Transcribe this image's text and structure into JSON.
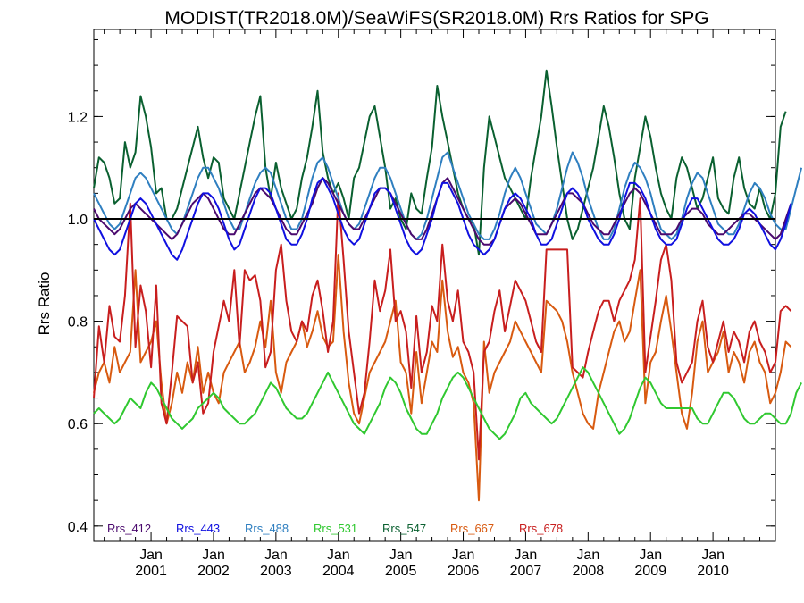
{
  "chart_data": {
    "type": "line",
    "title": "MODIST(TR2018.0M)/SeaWiFS(SR2018.0M)  Rrs Ratios for SPG",
    "xlabel": "",
    "ylabel": "Rrs Ratio",
    "xlim": [
      "2000-02",
      "2011-01"
    ],
    "ylim": [
      0.37,
      1.37
    ],
    "yticks": [
      0.4,
      0.6,
      0.8,
      1.0,
      1.2
    ],
    "ytick_labels": [
      "0.4",
      "0.6",
      "0.8",
      "1.0",
      "1.2"
    ],
    "xticks": [
      "2001-01",
      "2002-01",
      "2003-01",
      "2004-01",
      "2005-01",
      "2006-01",
      "2007-01",
      "2008-01",
      "2009-01",
      "2010-01"
    ],
    "xtick_labels_top": [
      "Jan",
      "Jan",
      "Jan",
      "Jan",
      "Jan",
      "Jan",
      "Jan",
      "Jan",
      "Jan",
      "Jan"
    ],
    "xtick_labels_bottom": [
      "2001",
      "2002",
      "2003",
      "2004",
      "2005",
      "2006",
      "2007",
      "2008",
      "2009",
      "2010"
    ],
    "reference_line": 1.0,
    "grid": false,
    "legend_position": "bottom",
    "start_month": "2000-02",
    "series": [
      {
        "name": "Rrs_412",
        "color": "#4b0a6e",
        "values": [
          1.02,
          1.0,
          0.99,
          0.98,
          0.97,
          0.98,
          1.0,
          1.02,
          1.03,
          1.02,
          1.01,
          1.0,
          0.99,
          0.98,
          0.97,
          0.96,
          0.97,
          0.99,
          1.01,
          1.03,
          1.04,
          1.05,
          1.04,
          1.02,
          1.0,
          0.98,
          0.97,
          0.97,
          0.99,
          1.01,
          1.03,
          1.05,
          1.06,
          1.05,
          1.04,
          1.02,
          1.0,
          0.98,
          0.97,
          0.97,
          0.99,
          1.01,
          1.03,
          1.06,
          1.08,
          1.07,
          1.05,
          1.03,
          1.01,
          0.99,
          0.98,
          0.98,
          1.0,
          1.02,
          1.04,
          1.06,
          1.06,
          1.05,
          1.03,
          1.01,
          0.99,
          0.97,
          0.96,
          0.96,
          0.98,
          1.01,
          1.04,
          1.07,
          1.08,
          1.06,
          1.04,
          1.02,
          1.0,
          0.98,
          0.96,
          0.95,
          0.95,
          0.96,
          0.99,
          1.02,
          1.03,
          1.04,
          1.03,
          1.01,
          0.99,
          0.97,
          0.97,
          0.97,
          0.99,
          1.01,
          1.03,
          1.05,
          1.05,
          1.04,
          1.03,
          1.01,
          0.99,
          0.98,
          0.97,
          0.97,
          0.99,
          1.01,
          1.03,
          1.05,
          1.06,
          1.05,
          1.03,
          1.01,
          0.99,
          0.97,
          0.97,
          0.97,
          0.98,
          1.0,
          1.01,
          1.02,
          1.02,
          1.01,
          0.99,
          0.98,
          0.97,
          0.97,
          0.98,
          0.99,
          1.0,
          1.01,
          1.01,
          1.0,
          0.99,
          0.98,
          0.97,
          0.96,
          0.97,
          1.0,
          1.03
        ]
      },
      {
        "name": "Rrs_443",
        "color": "#1010e0",
        "values": [
          1.0,
          0.98,
          0.96,
          0.94,
          0.93,
          0.94,
          0.97,
          1.0,
          1.03,
          1.04,
          1.03,
          1.01,
          0.99,
          0.97,
          0.95,
          0.93,
          0.92,
          0.94,
          0.97,
          1.0,
          1.03,
          1.05,
          1.05,
          1.04,
          1.02,
          0.99,
          0.96,
          0.94,
          0.95,
          0.98,
          1.01,
          1.04,
          1.06,
          1.06,
          1.05,
          1.02,
          0.99,
          0.96,
          0.95,
          0.95,
          0.97,
          1.0,
          1.04,
          1.07,
          1.08,
          1.06,
          1.04,
          1.01,
          0.98,
          0.96,
          0.95,
          0.96,
          0.99,
          1.02,
          1.05,
          1.06,
          1.06,
          1.05,
          1.02,
          0.99,
          0.96,
          0.94,
          0.93,
          0.94,
          0.97,
          1.0,
          1.04,
          1.07,
          1.07,
          1.05,
          1.03,
          1.0,
          0.97,
          0.95,
          0.94,
          0.93,
          0.94,
          0.96,
          0.99,
          1.02,
          1.04,
          1.05,
          1.04,
          1.02,
          1.0,
          0.97,
          0.95,
          0.95,
          0.96,
          0.99,
          1.02,
          1.05,
          1.06,
          1.05,
          1.03,
          1.0,
          0.98,
          0.96,
          0.95,
          0.95,
          0.97,
          1.0,
          1.04,
          1.07,
          1.07,
          1.06,
          1.04,
          1.01,
          0.98,
          0.96,
          0.95,
          0.95,
          0.96,
          0.99,
          1.02,
          1.04,
          1.04,
          1.02,
          1.0,
          0.98,
          0.96,
          0.95,
          0.95,
          0.96,
          0.98,
          1.01,
          1.02,
          1.01,
          0.99,
          0.97,
          0.95,
          0.94,
          0.96,
          0.99,
          1.03
        ]
      },
      {
        "name": "Rrs_488",
        "color": "#2f7fc0",
        "values": [
          1.05,
          1.03,
          1.01,
          0.99,
          0.98,
          0.99,
          1.02,
          1.05,
          1.08,
          1.09,
          1.08,
          1.06,
          1.04,
          1.02,
          1.0,
          0.98,
          0.97,
          0.99,
          1.02,
          1.05,
          1.08,
          1.1,
          1.1,
          1.08,
          1.06,
          1.03,
          1.0,
          0.98,
          0.98,
          1.01,
          1.04,
          1.07,
          1.09,
          1.1,
          1.09,
          1.06,
          1.03,
          1.0,
          0.98,
          0.98,
          1.0,
          1.04,
          1.08,
          1.11,
          1.12,
          1.1,
          1.07,
          1.04,
          1.01,
          0.99,
          0.98,
          0.99,
          1.02,
          1.05,
          1.08,
          1.1,
          1.1,
          1.08,
          1.05,
          1.02,
          0.99,
          0.97,
          0.96,
          0.97,
          1.0,
          1.04,
          1.08,
          1.12,
          1.13,
          1.1,
          1.07,
          1.04,
          1.01,
          0.99,
          0.97,
          0.96,
          0.96,
          0.98,
          1.01,
          1.05,
          1.08,
          1.1,
          1.08,
          1.05,
          1.02,
          0.99,
          0.98,
          0.97,
          0.99,
          1.02,
          1.06,
          1.1,
          1.13,
          1.11,
          1.08,
          1.04,
          1.01,
          0.98,
          0.96,
          0.96,
          0.98,
          1.02,
          1.06,
          1.09,
          1.11,
          1.1,
          1.08,
          1.05,
          1.01,
          0.98,
          0.97,
          0.96,
          0.97,
          1.0,
          1.04,
          1.07,
          1.09,
          1.08,
          1.05,
          1.02,
          0.99,
          0.98,
          0.97,
          0.97,
          0.99,
          1.02,
          1.05,
          1.07,
          1.06,
          1.04,
          1.01,
          0.99,
          0.98,
          0.98,
          1.02,
          1.06,
          1.1
        ]
      },
      {
        "name": "Rrs_531",
        "color": "#30c830",
        "values": [
          0.62,
          0.63,
          0.62,
          0.61,
          0.6,
          0.61,
          0.63,
          0.65,
          0.64,
          0.63,
          0.66,
          0.68,
          0.67,
          0.65,
          0.63,
          0.61,
          0.6,
          0.59,
          0.6,
          0.61,
          0.63,
          0.64,
          0.65,
          0.66,
          0.65,
          0.63,
          0.62,
          0.61,
          0.6,
          0.6,
          0.61,
          0.62,
          0.64,
          0.66,
          0.68,
          0.67,
          0.65,
          0.63,
          0.62,
          0.61,
          0.61,
          0.62,
          0.64,
          0.66,
          0.68,
          0.7,
          0.68,
          0.66,
          0.64,
          0.62,
          0.6,
          0.59,
          0.58,
          0.6,
          0.62,
          0.64,
          0.67,
          0.69,
          0.68,
          0.66,
          0.63,
          0.61,
          0.59,
          0.58,
          0.58,
          0.6,
          0.62,
          0.65,
          0.67,
          0.69,
          0.7,
          0.69,
          0.67,
          0.65,
          0.63,
          0.61,
          0.59,
          0.58,
          0.57,
          0.58,
          0.6,
          0.62,
          0.65,
          0.66,
          0.64,
          0.63,
          0.62,
          0.61,
          0.6,
          0.61,
          0.63,
          0.65,
          0.67,
          0.69,
          0.71,
          0.7,
          0.68,
          0.66,
          0.64,
          0.62,
          0.6,
          0.58,
          0.59,
          0.61,
          0.64,
          0.67,
          0.69,
          0.68,
          0.66,
          0.64,
          0.63,
          0.63,
          0.63,
          0.63,
          0.63,
          0.63,
          0.61,
          0.6,
          0.6,
          0.62,
          0.64,
          0.66,
          0.66,
          0.65,
          0.63,
          0.61,
          0.6,
          0.6,
          0.61,
          0.62,
          0.62,
          0.61,
          0.6,
          0.6,
          0.62,
          0.66,
          0.68
        ]
      },
      {
        "name": "Rrs_547",
        "color": "#0a6030",
        "values": [
          1.06,
          1.12,
          1.11,
          1.08,
          1.03,
          1.04,
          1.15,
          1.1,
          1.13,
          1.24,
          1.2,
          1.14,
          1.05,
          1.06,
          1.0,
          1.0,
          1.02,
          1.06,
          1.1,
          1.14,
          1.18,
          1.12,
          1.08,
          1.12,
          1.11,
          1.04,
          1.02,
          1.0,
          1.05,
          1.1,
          1.15,
          1.2,
          1.24,
          1.1,
          1.04,
          1.11,
          1.06,
          1.03,
          1.0,
          1.02,
          1.08,
          1.12,
          1.18,
          1.25,
          1.13,
          1.08,
          1.05,
          1.07,
          1.04,
          1.0,
          1.08,
          1.1,
          1.15,
          1.2,
          1.22,
          1.16,
          1.1,
          1.02,
          1.04,
          1.0,
          0.98,
          1.05,
          1.02,
          1.01,
          1.08,
          1.14,
          1.26,
          1.2,
          1.15,
          1.1,
          1.05,
          1.02,
          1.0,
          0.99,
          0.93,
          1.1,
          1.2,
          1.16,
          1.12,
          1.08,
          1.06,
          1.04,
          1.02,
          1.0,
          1.08,
          1.14,
          1.2,
          1.29,
          1.22,
          1.14,
          1.07,
          1.0,
          0.96,
          0.98,
          1.02,
          1.06,
          1.1,
          1.16,
          1.22,
          1.18,
          1.12,
          1.05,
          1.0,
          0.98,
          1.08,
          1.14,
          1.2,
          1.16,
          1.1,
          1.05,
          1.02,
          1.0,
          1.08,
          1.12,
          1.1,
          1.06,
          1.02,
          1.04,
          1.08,
          1.12,
          1.04,
          1.02,
          1.01,
          1.08,
          1.12,
          1.06,
          1.03,
          1.02,
          1.06,
          1.02,
          1.0,
          1.05,
          1.18,
          1.21
        ]
      },
      {
        "name": "Rrs_667",
        "color": "#d85a10",
        "values": [
          0.66,
          0.7,
          0.72,
          0.68,
          0.75,
          0.7,
          0.72,
          0.74,
          0.9,
          0.72,
          0.74,
          0.76,
          0.8,
          0.68,
          0.6,
          0.64,
          0.7,
          0.66,
          0.72,
          0.68,
          0.75,
          0.66,
          0.7,
          0.66,
          0.64,
          0.7,
          0.72,
          0.74,
          0.76,
          0.7,
          0.72,
          0.75,
          0.8,
          0.75,
          0.84,
          0.7,
          0.66,
          0.72,
          0.74,
          0.76,
          0.8,
          0.75,
          0.78,
          0.82,
          0.77,
          0.75,
          0.76,
          0.93,
          0.78,
          0.68,
          0.62,
          0.6,
          0.65,
          0.7,
          0.72,
          0.74,
          0.76,
          0.8,
          0.84,
          0.72,
          0.7,
          0.62,
          0.74,
          0.64,
          0.7,
          0.76,
          0.74,
          0.88,
          0.78,
          0.73,
          0.75,
          0.7,
          0.68,
          0.64,
          0.45,
          0.76,
          0.66,
          0.7,
          0.72,
          0.74,
          0.76,
          0.8,
          0.78,
          0.76,
          0.74,
          0.72,
          0.7,
          0.84,
          0.83,
          0.82,
          0.8,
          0.76,
          0.7,
          0.66,
          0.62,
          0.6,
          0.59,
          0.66,
          0.7,
          0.74,
          0.78,
          0.8,
          0.76,
          0.78,
          0.84,
          0.9,
          0.64,
          0.72,
          0.74,
          0.8,
          0.85,
          0.78,
          0.7,
          0.62,
          0.59,
          0.66,
          0.76,
          0.8,
          0.7,
          0.72,
          0.74,
          0.78,
          0.7,
          0.74,
          0.72,
          0.68,
          0.74,
          0.76,
          0.72,
          0.7,
          0.64,
          0.66,
          0.7,
          0.76,
          0.75
        ]
      },
      {
        "name": "Rrs_678",
        "color": "#c81e1e",
        "values": [
          0.65,
          0.79,
          0.72,
          0.83,
          0.77,
          0.76,
          0.85,
          1.03,
          0.75,
          0.87,
          0.82,
          0.71,
          0.87,
          0.64,
          0.6,
          0.7,
          0.81,
          0.8,
          0.79,
          0.68,
          0.72,
          0.62,
          0.64,
          0.74,
          0.79,
          0.84,
          0.8,
          0.9,
          0.75,
          0.9,
          0.88,
          0.89,
          0.84,
          0.71,
          0.74,
          0.9,
          0.95,
          0.84,
          0.78,
          0.76,
          0.8,
          0.78,
          0.85,
          0.88,
          0.82,
          0.74,
          0.8,
          1.05,
          0.92,
          0.78,
          0.7,
          0.62,
          0.66,
          0.76,
          0.88,
          0.82,
          0.86,
          0.94,
          0.8,
          0.82,
          0.78,
          0.67,
          0.81,
          0.7,
          0.74,
          0.83,
          0.8,
          0.95,
          0.84,
          0.8,
          0.86,
          0.76,
          0.74,
          0.7,
          0.53,
          0.74,
          0.76,
          0.82,
          0.86,
          0.78,
          0.83,
          0.88,
          0.86,
          0.84,
          0.8,
          0.76,
          0.74,
          0.94,
          0.94,
          0.94,
          0.94,
          0.94,
          0.71,
          0.7,
          0.69,
          0.74,
          0.78,
          0.82,
          0.84,
          0.84,
          0.8,
          0.84,
          0.86,
          0.88,
          0.92,
          1.04,
          0.7,
          0.77,
          0.84,
          0.92,
          0.95,
          0.88,
          0.72,
          0.68,
          0.7,
          0.72,
          0.8,
          0.84,
          0.75,
          0.72,
          0.76,
          0.8,
          0.74,
          0.78,
          0.76,
          0.72,
          0.78,
          0.8,
          0.76,
          0.74,
          0.7,
          0.72,
          0.82,
          0.83,
          0.82
        ]
      }
    ]
  }
}
